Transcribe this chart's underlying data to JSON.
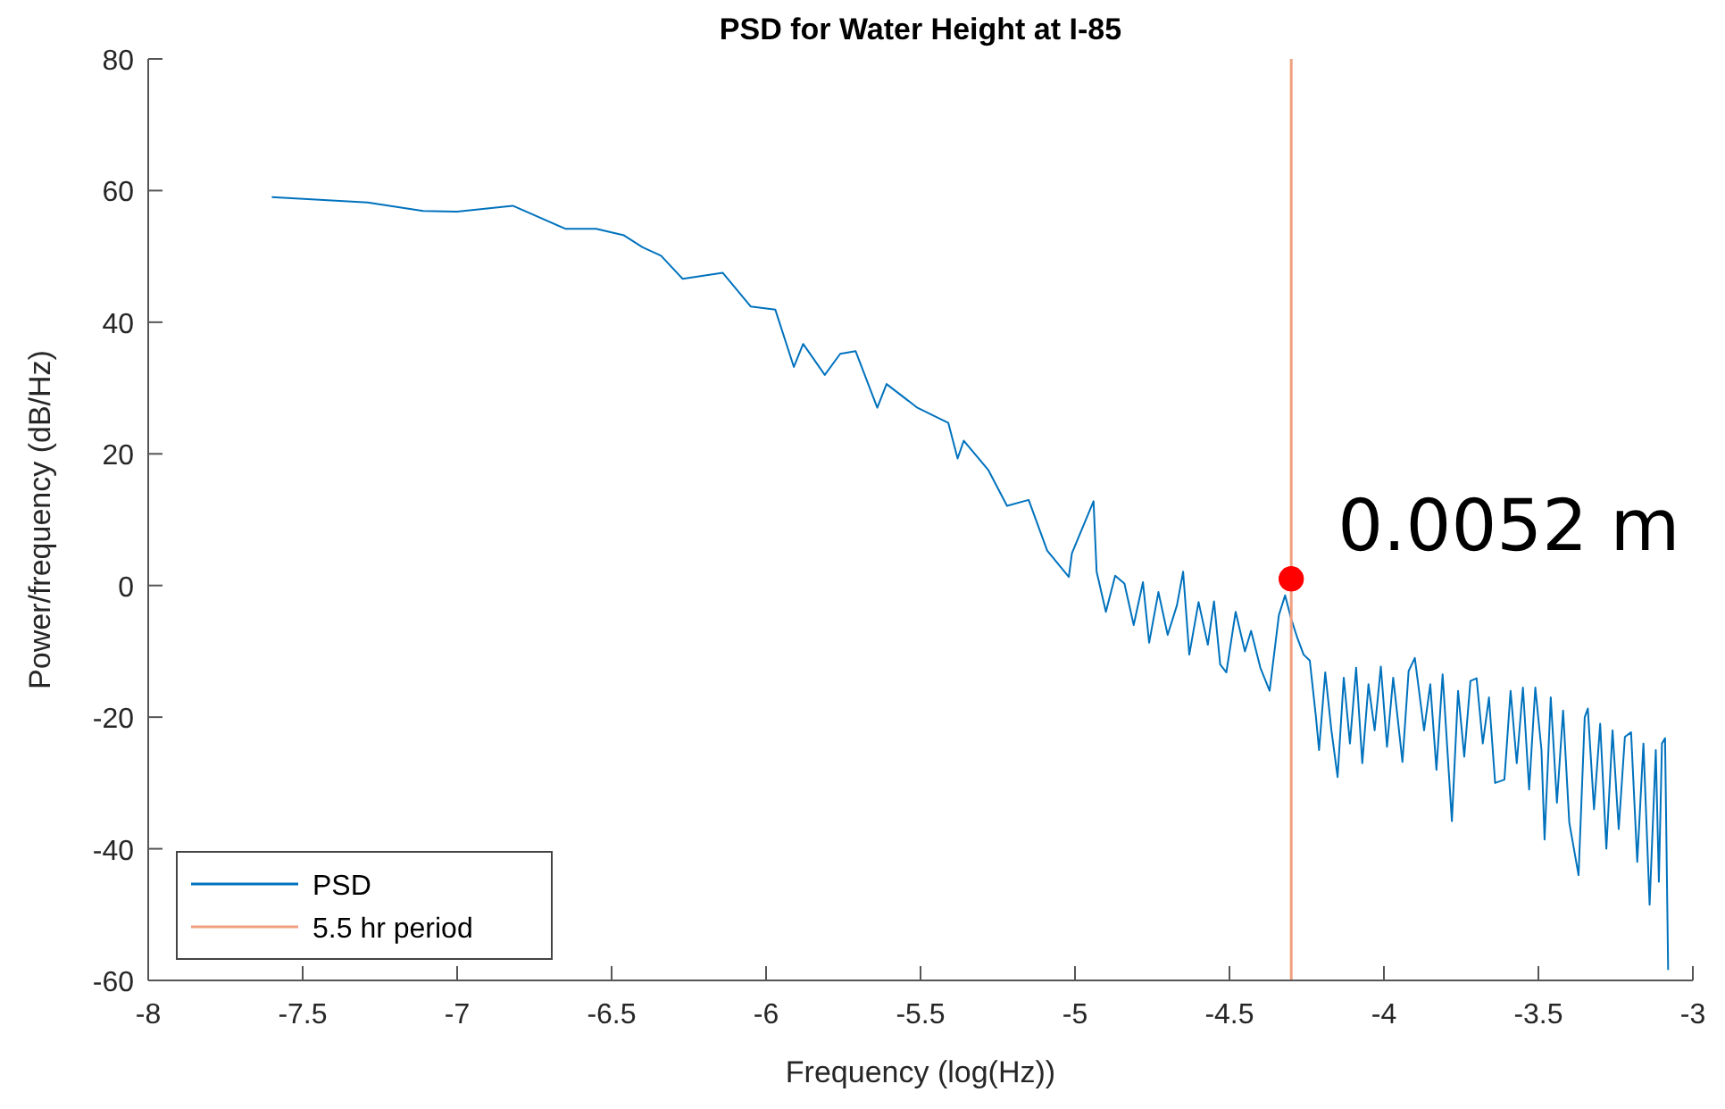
{
  "chart_data": {
    "type": "line",
    "title": "PSD for Water Height at I-85",
    "xlabel": "Frequency (log(Hz))",
    "ylabel": "Power/frequency (dB/Hz)",
    "xlim": [
      -8,
      -3
    ],
    "xticks": [
      -8,
      -7.5,
      -7,
      -6.5,
      -6,
      -5.5,
      -5,
      -4.5,
      -4,
      -3.5,
      -3
    ],
    "ylim": [
      -60,
      80
    ],
    "yticks": [
      -60,
      -40,
      -20,
      0,
      20,
      40,
      60,
      80
    ],
    "grid": false,
    "legend": "bottom left",
    "series": [
      {
        "name": "PSD",
        "color": "#0072bd",
        "x": [
          -7.6,
          -7.29,
          -7.11,
          -7.0,
          -6.82,
          -6.65,
          -6.55,
          -6.46,
          -6.4,
          -6.34,
          -6.27,
          -6.14,
          -6.05,
          -5.97,
          -5.91,
          -5.88,
          -5.81,
          -5.76,
          -5.71,
          -5.64,
          -5.61,
          -5.51,
          -5.41,
          -5.38,
          -5.36,
          -5.28,
          -5.22,
          -5.15,
          -5.09,
          -5.02,
          -5.01,
          -4.94,
          -4.93,
          -4.9,
          -4.87,
          -4.84,
          -4.81,
          -4.78,
          -4.76,
          -4.73,
          -4.7,
          -4.67,
          -4.65,
          -4.63,
          -4.6,
          -4.57,
          -4.55,
          -4.53,
          -4.51,
          -4.48,
          -4.45,
          -4.43,
          -4.4,
          -4.37,
          -4.34,
          -4.32,
          -4.3,
          -4.28,
          -4.26,
          -4.24,
          -4.22,
          -4.21,
          -4.19,
          -4.17,
          -4.15,
          -4.13,
          -4.11,
          -4.09,
          -4.07,
          -4.05,
          -4.03,
          -4.01,
          -3.99,
          -3.97,
          -3.94,
          -3.92,
          -3.9,
          -3.87,
          -3.85,
          -3.83,
          -3.81,
          -3.78,
          -3.76,
          -3.74,
          -3.72,
          -3.7,
          -3.68,
          -3.66,
          -3.64,
          -3.61,
          -3.59,
          -3.57,
          -3.55,
          -3.53,
          -3.51,
          -3.49,
          -3.48,
          -3.46,
          -3.44,
          -3.42,
          -3.4,
          -3.37,
          -3.35,
          -3.34,
          -3.32,
          -3.3,
          -3.28,
          -3.26,
          -3.24,
          -3.22,
          -3.2,
          -3.18,
          -3.16,
          -3.14,
          -3.12,
          -3.11,
          -3.1,
          -3.09,
          -3.08
        ],
        "values": [
          59.0,
          58.2,
          56.9,
          56.8,
          57.7,
          54.2,
          54.2,
          53.2,
          51.4,
          50.1,
          46.6,
          47.5,
          42.4,
          41.9,
          33.2,
          36.7,
          32.0,
          35.2,
          35.6,
          27.0,
          30.6,
          27.0,
          24.7,
          19.3,
          22.0,
          17.5,
          12.1,
          13.0,
          5.3,
          1.3,
          4.9,
          12.8,
          2.1,
          -4.0,
          1.5,
          0.3,
          -6.0,
          0.5,
          -8.7,
          -1.0,
          -7.5,
          -3.0,
          2.1,
          -10.5,
          -2.5,
          -9.0,
          -2.4,
          -12.0,
          -13.2,
          -4.0,
          -10.0,
          -6.9,
          -12.5,
          -16.0,
          -4.5,
          -1.5,
          -5.1,
          -8.0,
          -10.5,
          -11.4,
          -20.0,
          -25.0,
          -13.2,
          -22.0,
          -29.1,
          -14.0,
          -24.0,
          -12.5,
          -27.0,
          -15.0,
          -22.0,
          -12.3,
          -24.5,
          -14.0,
          -26.8,
          -13.0,
          -11.0,
          -22.0,
          -15.0,
          -28.0,
          -13.5,
          -35.8,
          -16.0,
          -26.0,
          -14.5,
          -14.1,
          -24.0,
          -17.0,
          -30.0,
          -29.5,
          -16.0,
          -27.0,
          -15.5,
          -31.0,
          -15.5,
          -25.0,
          -38.6,
          -17.0,
          -33.0,
          -19.0,
          -36.0,
          -44.0,
          -20.0,
          -18.7,
          -34.0,
          -21.0,
          -40.0,
          -22.0,
          -37.0,
          -23.0,
          -22.3,
          -42.0,
          -24.0,
          -48.5,
          -25.0,
          -45.0,
          -24.0,
          -23.2,
          -58.4
        ]
      },
      {
        "name": "5.5 hr period",
        "color": "#f0a080",
        "x": [
          -4.3,
          -4.3
        ],
        "values": [
          -60,
          80
        ]
      },
      {
        "type": "scatter",
        "color": "#ff0000",
        "marker": "circle",
        "x": [
          -4.3
        ],
        "values": [
          1
        ]
      }
    ],
    "annotations": [
      {
        "text": "0.0052 m",
        "x": -4.3,
        "y": 1
      }
    ]
  }
}
